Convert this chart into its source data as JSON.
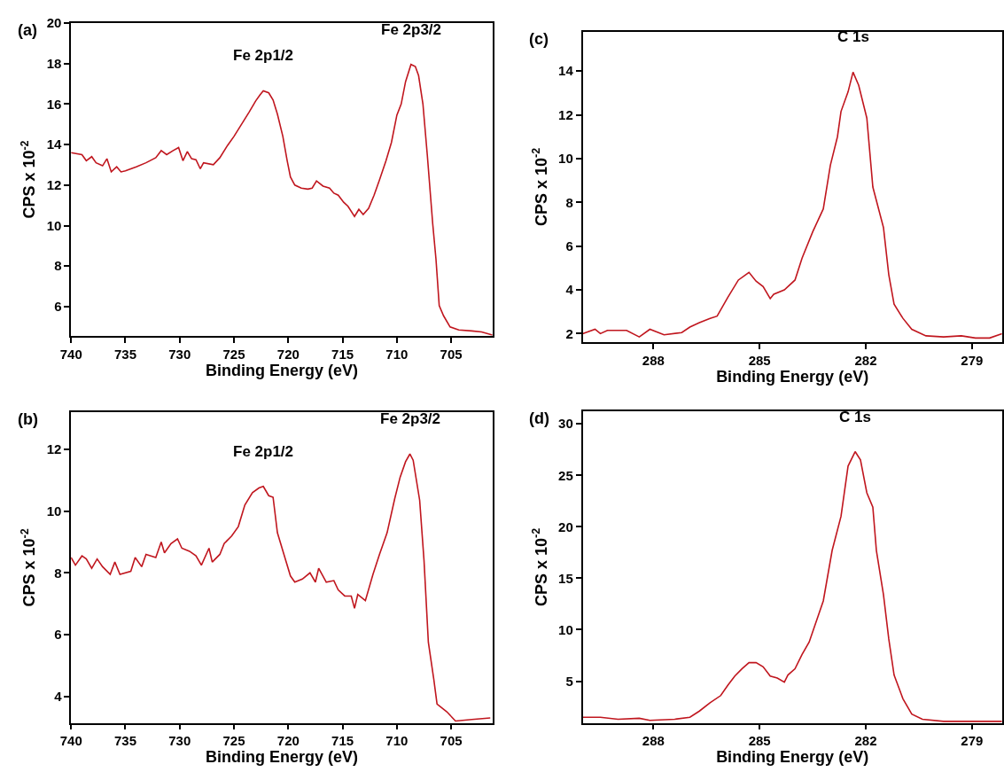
{
  "chart_data": [
    {
      "type": "line",
      "title": "(a)",
      "xlabel": "Binding Energy (eV)",
      "ylabel": "CPS x 10$^{-2}$",
      "xlim": [
        740,
        701.2
      ],
      "ylim": [
        4.55,
        20
      ],
      "xticks": [
        740,
        735,
        730,
        725,
        720,
        715,
        710,
        705
      ],
      "yticks": [
        6,
        8,
        10,
        12,
        14,
        16,
        18,
        20
      ],
      "x": [
        740,
        739,
        738.6,
        738.1,
        737.7,
        737.1,
        736.7,
        736.3,
        735.8,
        735.4,
        735,
        734,
        733.1,
        732.2,
        731.7,
        731.2,
        730.6,
        730.1,
        729.7,
        729.3,
        728.9,
        728.5,
        728.1,
        727.8,
        726.9,
        726.3,
        725.6,
        725,
        724.3,
        723.6,
        723,
        722.6,
        722.3,
        721.8,
        721.4,
        721,
        720.5,
        720.1,
        719.8,
        719.4,
        718.8,
        718.2,
        717.8,
        717.4,
        716.8,
        716.2,
        715.8,
        715.4,
        714.9,
        714.5,
        713.9,
        713.5,
        713.1,
        712.6,
        712.1,
        711.6,
        711,
        710.5,
        710,
        709.6,
        709.2,
        708.7,
        708.3,
        708,
        707.6,
        707.2,
        706.7,
        706.4,
        706.1,
        705.7,
        705.1,
        704.3,
        703.1,
        702.2,
        701.2
      ],
      "series": [
        {
          "color": "#c0161e",
          "values": [
            13.6,
            13.5,
            13.2,
            13.4,
            13.1,
            12.95,
            13.3,
            12.65,
            12.9,
            12.65,
            12.7,
            12.9,
            13.1,
            13.35,
            13.7,
            13.5,
            13.7,
            13.85,
            13.2,
            13.65,
            13.3,
            13.25,
            12.8,
            13.1,
            13.0,
            13.35,
            13.95,
            14.4,
            15.0,
            15.6,
            16.15,
            16.45,
            16.65,
            16.55,
            16.2,
            15.5,
            14.4,
            13.2,
            12.4,
            12.0,
            11.85,
            11.8,
            11.85,
            12.2,
            11.95,
            11.85,
            11.6,
            11.5,
            11.15,
            10.95,
            10.45,
            10.8,
            10.55,
            10.85,
            11.5,
            12.25,
            13.2,
            14.1,
            15.45,
            16.0,
            17.1,
            17.95,
            17.85,
            17.4,
            16.0,
            13.5,
            10.1,
            8.35,
            6.05,
            5.55,
            5.0,
            4.85,
            4.8,
            4.75,
            4.6
          ]
        }
      ],
      "annotations": [
        "Fe 2p1/2",
        "Fe 2p3/2"
      ]
    },
    {
      "type": "line",
      "title": "(c)",
      "xlabel": "Binding Energy (eV)",
      "ylabel": "CPS x 10$^{-2}$",
      "xlim": [
        290,
        278.15
      ],
      "ylim": [
        1.61,
        15.8
      ],
      "xticks": [
        288,
        285,
        282,
        279
      ],
      "yticks": [
        2,
        4,
        6,
        8,
        10,
        12,
        14
      ],
      "x": [
        290,
        289.65,
        289.5,
        289.3,
        288.76,
        288.4,
        288.1,
        287.7,
        287.2,
        286.97,
        286.7,
        286.4,
        286.2,
        285.9,
        285.6,
        285.3,
        285.1,
        284.9,
        284.7,
        284.6,
        284.3,
        284.0,
        283.8,
        283.5,
        283.2,
        283.0,
        282.8,
        282.7,
        282.5,
        282.36,
        282.2,
        281.97,
        281.8,
        281.5,
        281.35,
        281.2,
        280.95,
        280.7,
        280.3,
        279.8,
        279.3,
        278.9,
        278.5,
        278.15
      ],
      "series": [
        {
          "color": "#c0161e",
          "values": [
            2.0,
            2.2,
            2.0,
            2.15,
            2.15,
            1.85,
            2.2,
            1.95,
            2.05,
            2.3,
            2.5,
            2.7,
            2.8,
            3.65,
            4.45,
            4.8,
            4.4,
            4.15,
            3.6,
            3.8,
            4.0,
            4.45,
            5.45,
            6.65,
            7.7,
            9.7,
            11.0,
            12.15,
            13.05,
            13.95,
            13.35,
            11.85,
            8.7,
            6.85,
            4.7,
            3.35,
            2.7,
            2.2,
            1.9,
            1.85,
            1.9,
            1.8,
            1.8,
            2.0
          ]
        }
      ],
      "annotations": [
        "C 1s"
      ]
    },
    {
      "type": "line",
      "title": "(b)",
      "xlabel": "Binding Energy (eV)",
      "ylabel": "CPS x 10$^{-2}$",
      "xlim": [
        740,
        701.2
      ],
      "ylim": [
        3.14,
        13.2
      ],
      "xticks": [
        740,
        735,
        730,
        725,
        720,
        715,
        710,
        705
      ],
      "yticks": [
        4,
        6,
        8,
        10,
        12
      ],
      "x": [
        740,
        739.6,
        739,
        738.6,
        738.1,
        737.6,
        737.1,
        736.4,
        735.97,
        735.5,
        734.5,
        734.1,
        733.5,
        733.1,
        732.2,
        731.7,
        731.4,
        730.8,
        730.2,
        729.8,
        729.1,
        728.5,
        728.0,
        727.3,
        727.0,
        726.3,
        725.9,
        725.2,
        724.6,
        724.0,
        723.3,
        722.7,
        722.3,
        721.8,
        721.4,
        721.0,
        720.4,
        719.8,
        719.4,
        718.7,
        718.0,
        717.5,
        717.2,
        716.5,
        715.8,
        715.4,
        714.8,
        714.2,
        713.9,
        713.6,
        712.9,
        712.2,
        711.6,
        710.9,
        710.2,
        709.7,
        709.2,
        708.8,
        708.5,
        707.9,
        707.5,
        707.1,
        706.6,
        706.3,
        705.4,
        704.6,
        703.1,
        701.4
      ],
      "series": [
        {
          "color": "#c0161e",
          "values": [
            8.5,
            8.25,
            8.55,
            8.45,
            8.15,
            8.45,
            8.2,
            7.95,
            8.35,
            7.95,
            8.05,
            8.5,
            8.2,
            8.6,
            8.5,
            9.0,
            8.65,
            8.95,
            9.1,
            8.8,
            8.7,
            8.55,
            8.25,
            8.8,
            8.35,
            8.6,
            8.95,
            9.2,
            9.5,
            10.2,
            10.6,
            10.75,
            10.8,
            10.5,
            10.45,
            9.3,
            8.6,
            7.9,
            7.7,
            7.8,
            8.0,
            7.7,
            8.15,
            7.7,
            7.75,
            7.45,
            7.25,
            7.25,
            6.85,
            7.3,
            7.1,
            7.95,
            8.6,
            9.3,
            10.4,
            11.1,
            11.6,
            11.85,
            11.65,
            10.35,
            8.4,
            5.75,
            4.55,
            3.75,
            3.5,
            3.2,
            3.25,
            3.3
          ]
        }
      ],
      "annotations": [
        "Fe 2p1/2",
        "Fe 2p3/2"
      ]
    },
    {
      "type": "line",
      "title": "(d)",
      "xlabel": "Binding Energy (eV)",
      "ylabel": "CPS x 10$^{-2}$",
      "xlim": [
        290,
        278.15
      ],
      "ylim": [
        0.95,
        31.2
      ],
      "xticks": [
        288,
        285,
        282,
        279
      ],
      "yticks": [
        5,
        10,
        15,
        20,
        25,
        30
      ],
      "x": [
        290,
        289.5,
        289.0,
        288.4,
        288.1,
        287.4,
        286.97,
        286.7,
        286.4,
        286.1,
        285.9,
        285.7,
        285.5,
        285.3,
        285.1,
        284.9,
        284.7,
        284.5,
        284.3,
        284.2,
        284.0,
        283.8,
        283.6,
        283.2,
        282.95,
        282.7,
        282.5,
        282.3,
        282.15,
        281.97,
        281.8,
        281.7,
        281.5,
        281.35,
        281.2,
        280.95,
        280.7,
        280.4,
        279.8,
        279.2,
        278.15
      ],
      "series": [
        {
          "color": "#c0161e",
          "values": [
            1.5,
            1.5,
            1.3,
            1.4,
            1.2,
            1.3,
            1.5,
            2.1,
            2.9,
            3.6,
            4.6,
            5.5,
            6.2,
            6.8,
            6.8,
            6.4,
            5.5,
            5.3,
            4.9,
            5.6,
            6.2,
            7.6,
            8.8,
            12.8,
            17.7,
            21.0,
            25.9,
            27.3,
            26.5,
            23.3,
            21.9,
            17.7,
            13.4,
            9.1,
            5.6,
            3.3,
            1.8,
            1.3,
            1.1,
            1.1,
            1.1
          ]
        }
      ],
      "annotations": [
        "C 1s"
      ]
    }
  ]
}
